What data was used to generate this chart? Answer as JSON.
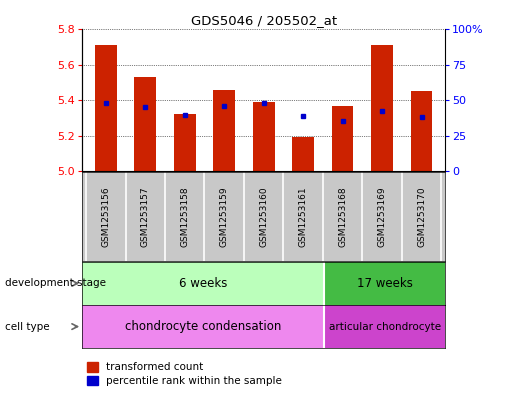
{
  "title": "GDS5046 / 205502_at",
  "samples": [
    "GSM1253156",
    "GSM1253157",
    "GSM1253158",
    "GSM1253159",
    "GSM1253160",
    "GSM1253161",
    "GSM1253168",
    "GSM1253169",
    "GSM1253170"
  ],
  "bar_values": [
    5.71,
    5.53,
    5.32,
    5.46,
    5.39,
    5.19,
    5.37,
    5.71,
    5.45
  ],
  "dot_values": [
    5.385,
    5.36,
    5.315,
    5.37,
    5.385,
    5.31,
    5.285,
    5.34,
    5.305
  ],
  "y_min": 5.0,
  "y_max": 5.8,
  "y_ticks": [
    5.0,
    5.2,
    5.4,
    5.6,
    5.8
  ],
  "bar_color": "#cc2200",
  "dot_color": "#0000cc",
  "bar_width": 0.55,
  "label_bg": "#c8c8c8",
  "label_divider": "#ffffff",
  "dev_stage_6w": "6 weeks",
  "dev_stage_17w": "17 weeks",
  "cell_type_1": "chondrocyte condensation",
  "cell_type_2": "articular chondrocyte",
  "dev_stage_color_6w": "#bbffbb",
  "dev_stage_color_17w": "#44bb44",
  "cell_type_color_1": "#ee88ee",
  "cell_type_color_2": "#cc44cc",
  "group_split": 6,
  "legend_tc": "transformed count",
  "legend_pr": "percentile rank within the sample",
  "right_yticks": [
    0,
    25,
    50,
    75,
    100
  ],
  "right_ylabels": [
    "0",
    "25",
    "50",
    "75",
    "100%"
  ],
  "row_label_dev": "development stage",
  "row_label_cell": "cell type"
}
